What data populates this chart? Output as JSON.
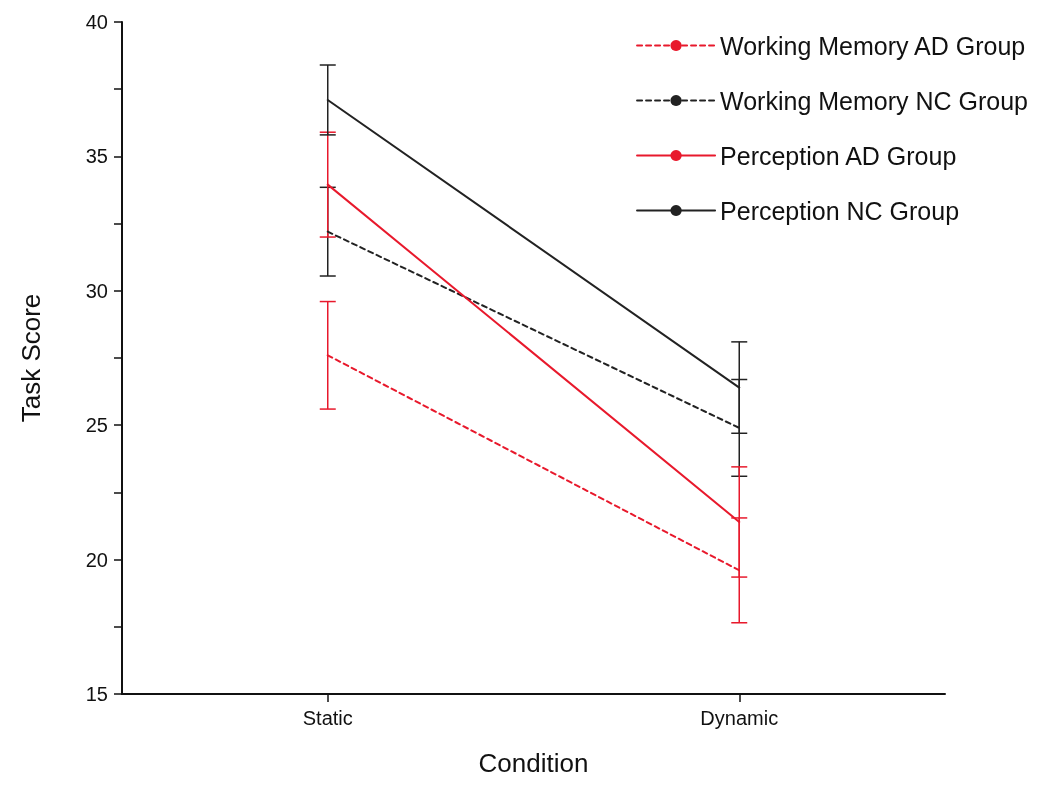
{
  "chart_data": {
    "type": "line",
    "xlabel": "Condition",
    "ylabel": "Task Score",
    "categories": [
      "Static",
      "Dynamic"
    ],
    "series": [
      {
        "name": "Working Memory AD Group",
        "color": "#e8192c",
        "line_style": "dashed",
        "values": [
          27.6,
          19.6
        ],
        "errors": [
          2.0,
          1.95
        ]
      },
      {
        "name": "Working Memory NC Group",
        "color": "#222222",
        "line_style": "dashed",
        "values": [
          32.2,
          24.9
        ],
        "errors": [
          1.65,
          1.8
        ]
      },
      {
        "name": "Perception AD Group",
        "color": "#e8192c",
        "line_style": "solid",
        "values": [
          33.95,
          21.4
        ],
        "errors": [
          1.95,
          2.05
        ]
      },
      {
        "name": "Perception NC Group",
        "color": "#222222",
        "line_style": "solid",
        "values": [
          37.1,
          26.4
        ],
        "errors": [
          1.3,
          1.7
        ]
      }
    ],
    "ylim": [
      15,
      40
    ],
    "yticks": [
      15,
      {
        "value": 17.5,
        "label": null
      },
      20,
      {
        "value": 22.5,
        "label": null
      },
      25,
      {
        "value": 27.5,
        "label": null
      },
      30,
      {
        "value": 32.5,
        "label": null
      },
      35,
      {
        "value": 37.5,
        "label": null
      },
      40
    ],
    "grid": false,
    "legend": "top right",
    "marker": "none"
  }
}
